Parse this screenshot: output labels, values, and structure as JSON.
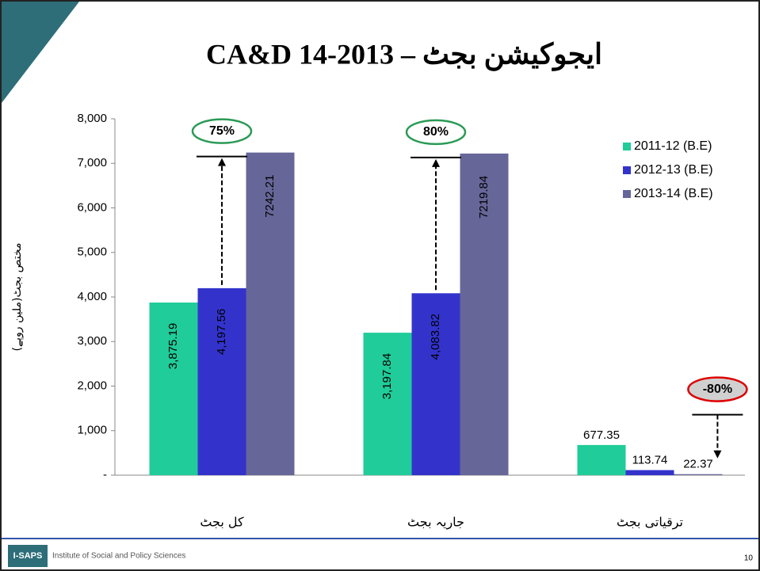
{
  "slide_title": "CA&D ایجوکیشن بجٹ – 2013-14",
  "chart_data": {
    "type": "bar",
    "y_label": "مختص بجٹ(ملین روپے)",
    "categories": [
      "کل بجٹ",
      "جاریہ بجٹ",
      "ترقیاتی بجٹ"
    ],
    "series": [
      {
        "name": "2011-12 (B.E)",
        "color": "#20cc99",
        "values": [
          3875.19,
          3197.84,
          677.35
        ],
        "value_labels": [
          "3,875.19",
          "3,197.84",
          "677.35"
        ]
      },
      {
        "name": "2012-13 (B.E)",
        "color": "#3333cc",
        "values": [
          4197.56,
          4083.82,
          113.74
        ],
        "value_labels": [
          "4,197.56",
          "4,083.82",
          "113.74"
        ]
      },
      {
        "name": "2013-14 (B.E)",
        "color": "#666699",
        "values": [
          7242.21,
          7219.84,
          22.37
        ],
        "value_labels": [
          "7242.21",
          "7219.84",
          "22.37"
        ]
      }
    ],
    "ylim": [
      0,
      8000
    ],
    "yticks": [
      {
        "value": 0,
        "label": "-"
      },
      {
        "value": 1000,
        "label": "1,000"
      },
      {
        "value": 2000,
        "label": "2,000"
      },
      {
        "value": 3000,
        "label": "3,000"
      },
      {
        "value": 4000,
        "label": "4,000"
      },
      {
        "value": 5000,
        "label": "5,000"
      },
      {
        "value": 6000,
        "label": "6,000"
      },
      {
        "value": 7000,
        "label": "7,000"
      },
      {
        "value": 8000,
        "label": "8,000"
      }
    ],
    "annotations": [
      "75%",
      "80%",
      "-80%"
    ],
    "legend": "upper right"
  },
  "footer": {
    "logo": "I-SAPS",
    "institute": "Institute of Social and Policy Sciences",
    "page": "10"
  }
}
